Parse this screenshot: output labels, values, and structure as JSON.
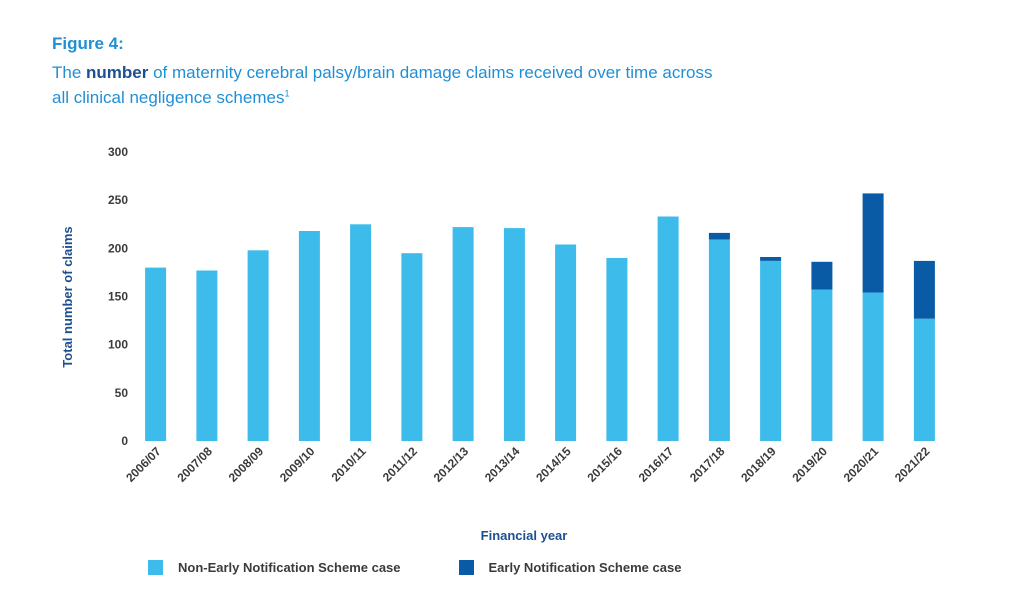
{
  "heading": {
    "figure_label": "Figure 4:",
    "subtitle_prefix": "The ",
    "subtitle_bold": "number",
    "subtitle_rest": " of maternity cerebral palsy/brain damage claims received over time across",
    "subtitle_line2": "all clinical negligence schemes",
    "subtitle_footnote": "1"
  },
  "colors": {
    "title": "#1f8fd6",
    "non_ens": "#3dbbea",
    "ens": "#0a5ba5",
    "axis_text": "#1d4f91",
    "tick_text": "#3b3b3b"
  },
  "chart_data": {
    "type": "bar",
    "stacked": true,
    "categories": [
      "2006/07",
      "2007/08",
      "2008/09",
      "2009/10",
      "2010/11",
      "2011/12",
      "2012/13",
      "2013/14",
      "2014/15",
      "2015/16",
      "2016/17",
      "2017/18",
      "2018/19",
      "2019/20",
      "2020/21",
      "2021/22"
    ],
    "series": [
      {
        "name": "Non-Early Notification Scheme case",
        "color": "#3dbbea",
        "values": [
          180,
          177,
          198,
          218,
          225,
          195,
          222,
          221,
          204,
          190,
          233,
          209,
          187,
          157,
          154,
          127
        ]
      },
      {
        "name": "Early Notification Scheme case",
        "color": "#0a5ba5",
        "values": [
          0,
          0,
          0,
          0,
          0,
          0,
          0,
          0,
          0,
          0,
          0,
          7,
          4,
          29,
          103,
          60
        ]
      }
    ],
    "xlabel": "Financial year",
    "ylabel": "Total number of claims",
    "ylim": [
      0,
      300
    ],
    "yticks": [
      0,
      50,
      100,
      150,
      200,
      250,
      300
    ],
    "grid": false,
    "legend_position": "bottom-left"
  }
}
